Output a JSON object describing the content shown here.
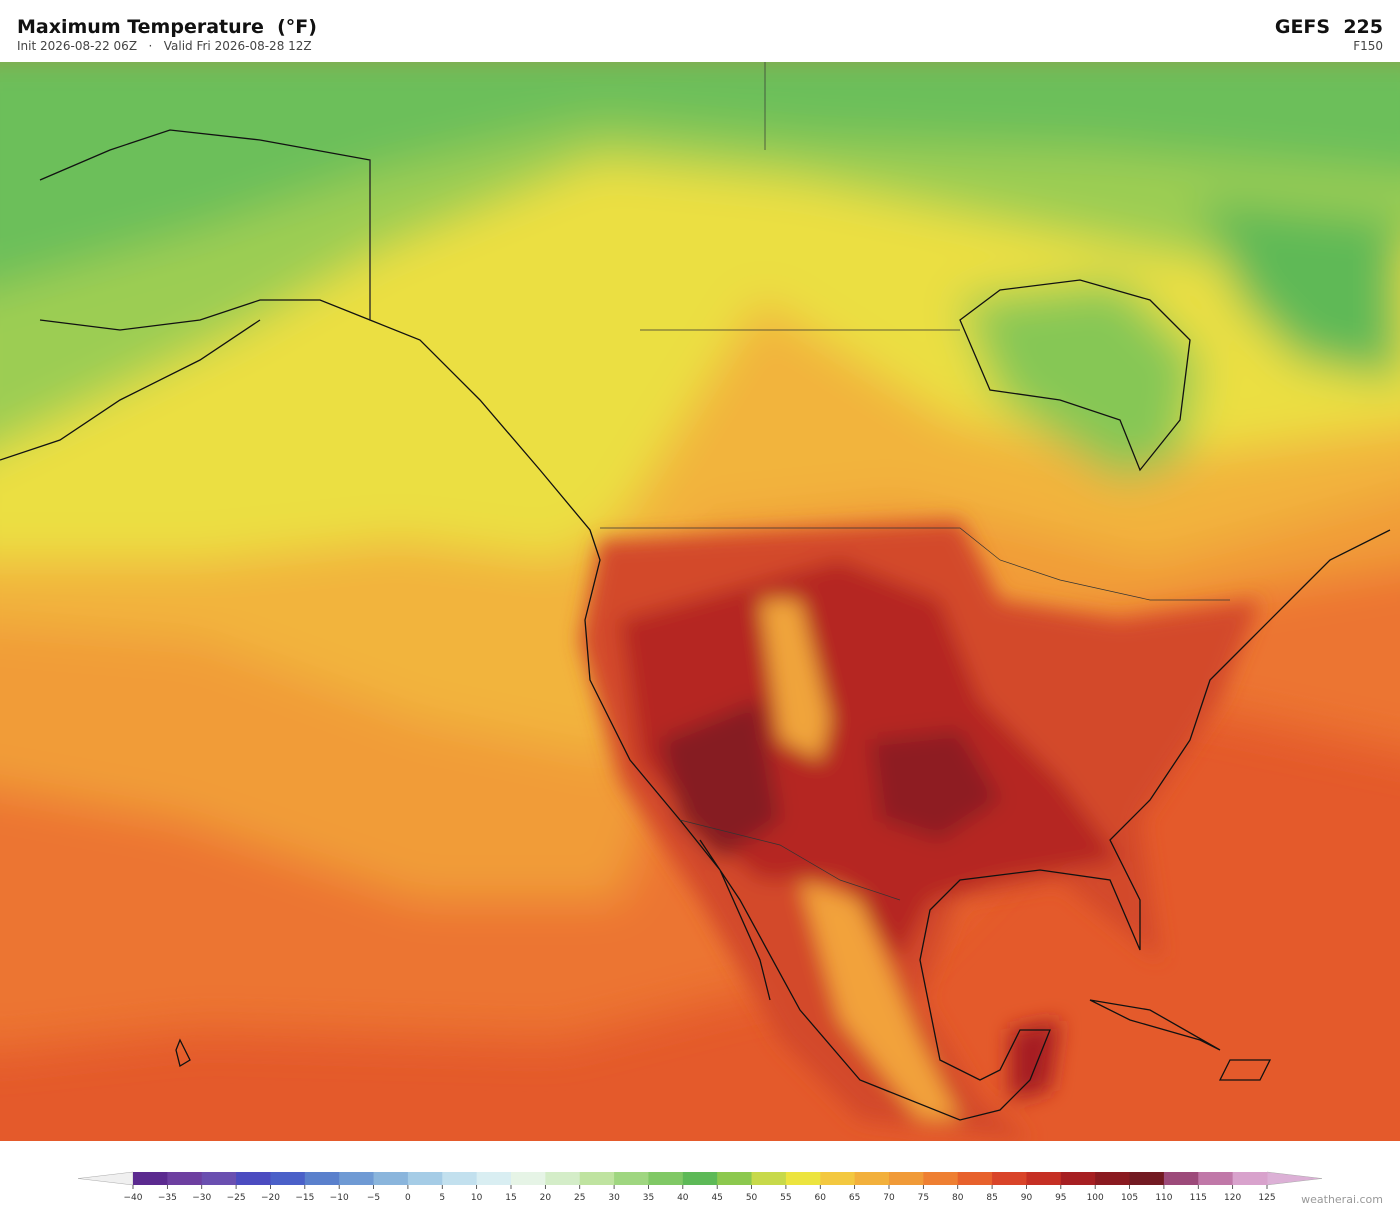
{
  "header": {
    "title": "Maximum Temperature  (°F)",
    "subtitle": "Init 2026-08-22 06Z   ·   Valid Fri 2026-08-28 12Z",
    "model": "GEFS  225",
    "forecast_hour": "F150"
  },
  "colorbar": {
    "ticks": [
      {
        "value": -40,
        "label": "−40"
      },
      {
        "value": -35,
        "label": "−35"
      },
      {
        "value": -30,
        "label": "−30"
      },
      {
        "value": -25,
        "label": "−25"
      },
      {
        "value": -20,
        "label": "−20"
      },
      {
        "value": -15,
        "label": "−15"
      },
      {
        "value": -10,
        "label": "−10"
      },
      {
        "value": -5,
        "label": "−5"
      },
      0,
      5,
      10,
      15,
      20,
      25,
      30,
      35,
      40,
      45,
      50,
      55,
      60,
      65,
      70,
      75,
      80,
      85,
      90,
      95,
      100,
      105,
      110,
      115,
      120,
      125
    ],
    "colors": [
      "#5b2a8f",
      "#6d3fa0",
      "#6a4fb0",
      "#4b4bc0",
      "#4a60c8",
      "#5a80cc",
      "#6f9ad4",
      "#8ab5dc",
      "#a5cce6",
      "#c2e0ee",
      "#d9eef2",
      "#e6f4e6",
      "#d4edc8",
      "#bfe3a0",
      "#9fd680",
      "#80c865",
      "#5db957",
      "#8cc84e",
      "#c7d94a",
      "#ece43f",
      "#f3c840",
      "#f2b03c",
      "#f09a38",
      "#ee7f32",
      "#e7612c",
      "#d94429",
      "#c52f24",
      "#a61f22",
      "#8a1a20",
      "#721a22",
      "#9c4a7a",
      "#c078a8",
      "#d8a2cc"
    ],
    "under_color": "#f0f0f0",
    "over_color": "#dcb0d6"
  },
  "footer": {
    "credit": "weatherai.com"
  }
}
